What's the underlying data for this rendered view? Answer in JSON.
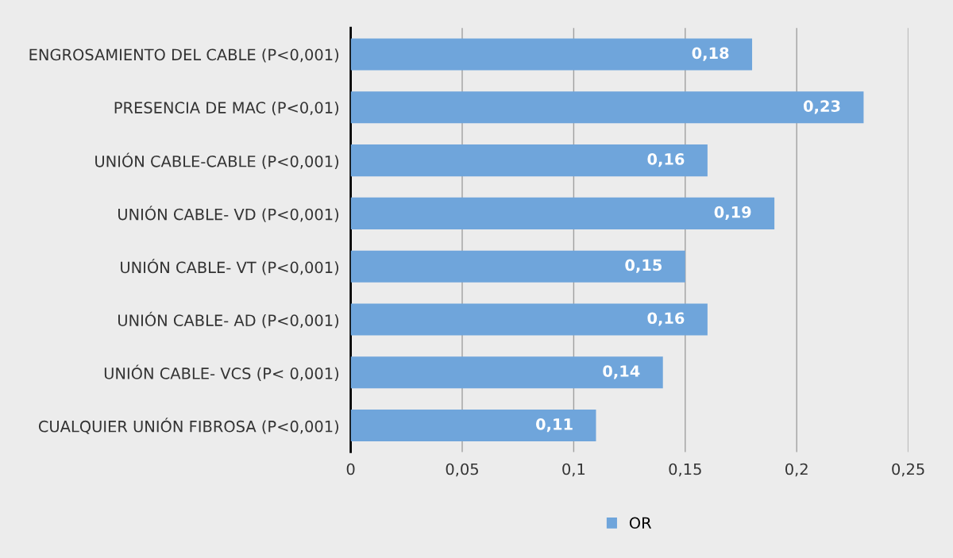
{
  "chart_data": {
    "type": "bar",
    "orientation": "horizontal",
    "categories": [
      "ENGROSAMIENTO DEL CABLE (P<0,001)",
      "PRESENCIA DE MAC (P<0,01)",
      "UNIÓN CABLE-CABLE (P<0,001)",
      "UNIÓN CABLE- VD (P<0,001)",
      "UNIÓN CABLE- VT (P<0,001)",
      "UNIÓN CABLE- AD (P<0,001)",
      "UNIÓN CABLE- VCS (P< 0,001)",
      "CUALQUIER UNIÓN FIBROSA (P<0,001)"
    ],
    "series": [
      {
        "name": "OR",
        "color": "#6fa5db",
        "values": [
          0.18,
          0.23,
          0.16,
          0.19,
          0.15,
          0.16,
          0.14,
          0.11
        ],
        "value_labels": [
          "0,18",
          "0,23",
          "0,16",
          "0,19",
          "0,15",
          "0,16",
          "0,14",
          "0,11"
        ]
      }
    ],
    "xlim": [
      0,
      0.25
    ],
    "xticks": [
      0,
      {
        "value": 0.05,
        "label": "0,05"
      },
      {
        "value": 0.1,
        "label": "0,1"
      },
      {
        "value": 0.15,
        "label": "0,15"
      },
      {
        "value": 0.2,
        "label": "0,2"
      },
      {
        "value": 0.25,
        "label": "0,25"
      }
    ],
    "grid": "x",
    "legend": "bottom"
  }
}
